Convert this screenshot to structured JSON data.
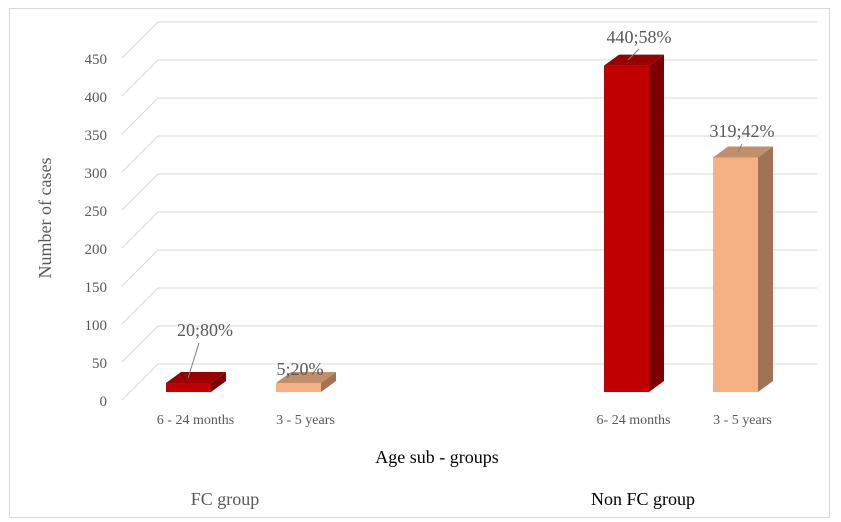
{
  "chart_data": {
    "type": "bar",
    "ylabel": "Number of cases",
    "xlabel": "Age sub - groups",
    "ylim": [
      0,
      450
    ],
    "yticks": [
      0,
      50,
      100,
      150,
      200,
      250,
      300,
      350,
      400,
      450
    ],
    "grid": true,
    "groups": [
      "FC group",
      "Non FC group"
    ],
    "categories": [
      "6 - 24 months",
      "3 - 5 years",
      "6- 24 months",
      "3 - 5 years"
    ],
    "category_group": [
      0,
      0,
      1,
      1
    ],
    "values": [
      20,
      5,
      440,
      319
    ],
    "labels": [
      "20;80%",
      "5;20%",
      "440;58%",
      "319;42%"
    ],
    "colors": {
      "infant": "#c00000",
      "preschool": "#f4b183",
      "grid": "#d9d9d9",
      "text": "#595959"
    }
  }
}
